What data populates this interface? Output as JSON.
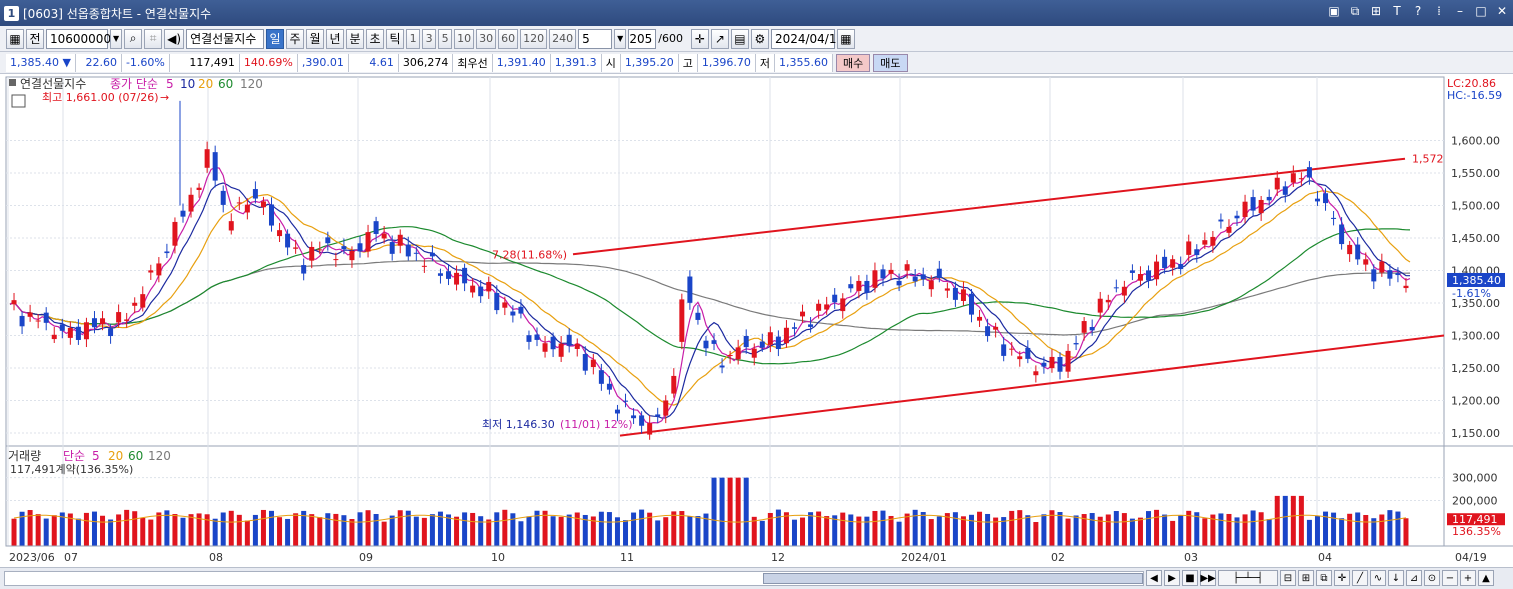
{
  "window": {
    "badge": "1",
    "title": "[0603] 선옵종합차트 - 연결선물지수"
  },
  "toolbar": {
    "period_label": "전",
    "code": "10600000",
    "name": "연결선물지수",
    "periods": [
      "일",
      "주",
      "월",
      "년",
      "분",
      "초",
      "틱"
    ],
    "active_period": "일",
    "minutes": [
      "1",
      "3",
      "5",
      "10",
      "30",
      "60",
      "120",
      "240"
    ],
    "interval": "5",
    "count": "205",
    "count_total": "/600",
    "date": "2024/04/19"
  },
  "quote": {
    "price": "1,385.40 ▼",
    "change": "22.60",
    "change_pct": "-1.60%",
    "volume": "117,491",
    "volume_pct": "140.69%",
    "amount": ",390.01",
    "basis": "4.61",
    "open_interest": "306,274",
    "best_label": "최우선",
    "best_bid": "1,391.40",
    "best_ask": "1,391.3",
    "open_label": "시",
    "open": "1,395.20",
    "high_label": "고",
    "high": "1,396.70",
    "low_label": "저",
    "low": "1,355.60",
    "buy_label": "매수",
    "sell_label": "매도"
  },
  "price_panel": {
    "legend_name": "연결선물지수",
    "legend_ma": "종가 단순",
    "ma_periods": [
      "5",
      "10",
      "20",
      "60",
      "120"
    ],
    "max_label": "최고 1,661.00 (07/26)",
    "min_label": "최저 1,146.30",
    "min_overlap": "(11/01) 12%)",
    "lc": "LC:20.86",
    "hc": "HC:-16.59",
    "trend_label": "7.28(11.68%)",
    "trend_end": "1,572",
    "last_price": "1,385.40",
    "last_pct": "-1.61%",
    "y_ticks": [
      "1,600.00",
      "1,550.00",
      "1,500.00",
      "1,450.00",
      "1,400.00",
      "1,350.00",
      "1,300.00",
      "1,250.00",
      "1,200.00",
      "1,150.00"
    ]
  },
  "volume_panel": {
    "legend_name": "거래량",
    "legend_ma": "단순",
    "ma_periods": [
      "5",
      "20",
      "60",
      "120"
    ],
    "info": "117,491계약(136.35%)",
    "y_ticks": [
      "300,000",
      "200,000"
    ],
    "last_value": "117,491",
    "last_pct": "136.35%"
  },
  "x_axis": {
    "labels": [
      "2023/06",
      "07",
      "08",
      "09",
      "10",
      "11",
      "12",
      "2024/01",
      "02",
      "03",
      "04"
    ],
    "end_label": "04/19"
  },
  "colors": {
    "up": "#e0141e",
    "down": "#1a45c8",
    "ma5": "#c81ea8",
    "ma10": "#1c2aa0",
    "ma20": "#e8a010",
    "ma60": "#1c8a2e",
    "ma120": "#7a7a7a",
    "trend": "#e0141e"
  },
  "chart_data": {
    "type": "candlestick",
    "title": "연결선물지수",
    "ylim": [
      1130,
      1690
    ],
    "y_ticks": [
      1150,
      1200,
      1250,
      1300,
      1350,
      1400,
      1450,
      1500,
      1550,
      1600
    ],
    "series": [
      {
        "name": "close",
        "x": [
          "2023/06",
          "07",
          "08",
          "09",
          "10",
          "11",
          "12",
          "2024/01",
          "02",
          "03",
          "04",
          "04/19"
        ],
        "values": [
          1335,
          1310,
          1530,
          1450,
          1350,
          1160,
          1290,
          1410,
          1270,
          1460,
          1540,
          1385.4
        ]
      },
      {
        "name": "volume",
        "x": [
          "2023/06",
          "07",
          "08",
          "09",
          "10",
          "11",
          "12",
          "2024/01",
          "02",
          "03",
          "04",
          "04/19"
        ],
        "values": [
          120000,
          130000,
          180000,
          110000,
          120000,
          150000,
          110000,
          105000,
          100000,
          105000,
          110000,
          117491
        ]
      }
    ],
    "annotations": {
      "high": 1661.0,
      "high_date": "07/26",
      "low": 1146.3,
      "low_date": "11/01",
      "trend_end": 1572,
      "last": 1385.4
    }
  }
}
